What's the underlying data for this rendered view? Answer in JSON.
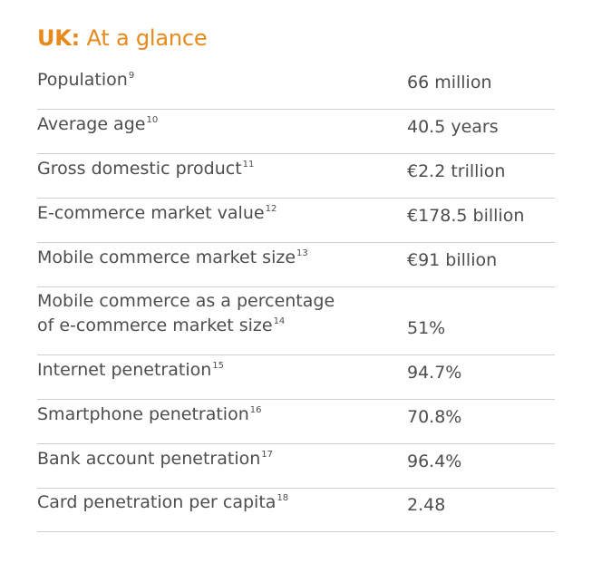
{
  "title": {
    "prefix": "UK:",
    "rest": " At a glance"
  },
  "rows": [
    {
      "label": "Population",
      "note": "9",
      "value": "66 million"
    },
    {
      "label": "Average age",
      "note": "10",
      "value": "40.5 years"
    },
    {
      "label": "Gross domestic product",
      "note": "11",
      "value": "€2.2 trillion"
    },
    {
      "label": "E-commerce market value",
      "note": "12",
      "value": "€178.5 billion"
    },
    {
      "label": "Mobile commerce market size",
      "note": "13",
      "value": "€91 billion"
    },
    {
      "label_line1": "Mobile commerce as a percentage",
      "label": "of e-commerce market size",
      "note": "14",
      "value": "51%"
    },
    {
      "label": "Internet penetration",
      "note": "15",
      "value": "94.7%"
    },
    {
      "label": "Smartphone penetration",
      "note": "16",
      "value": "70.8%"
    },
    {
      "label": "Bank account penetration",
      "note": "17",
      "value": "96.4%"
    },
    {
      "label": "Card penetration per capita",
      "note": "18",
      "value": "2.48"
    }
  ],
  "colors": {
    "accent": "#e8891b",
    "text": "#4d4d4d",
    "rule": "#cfcfcf"
  }
}
